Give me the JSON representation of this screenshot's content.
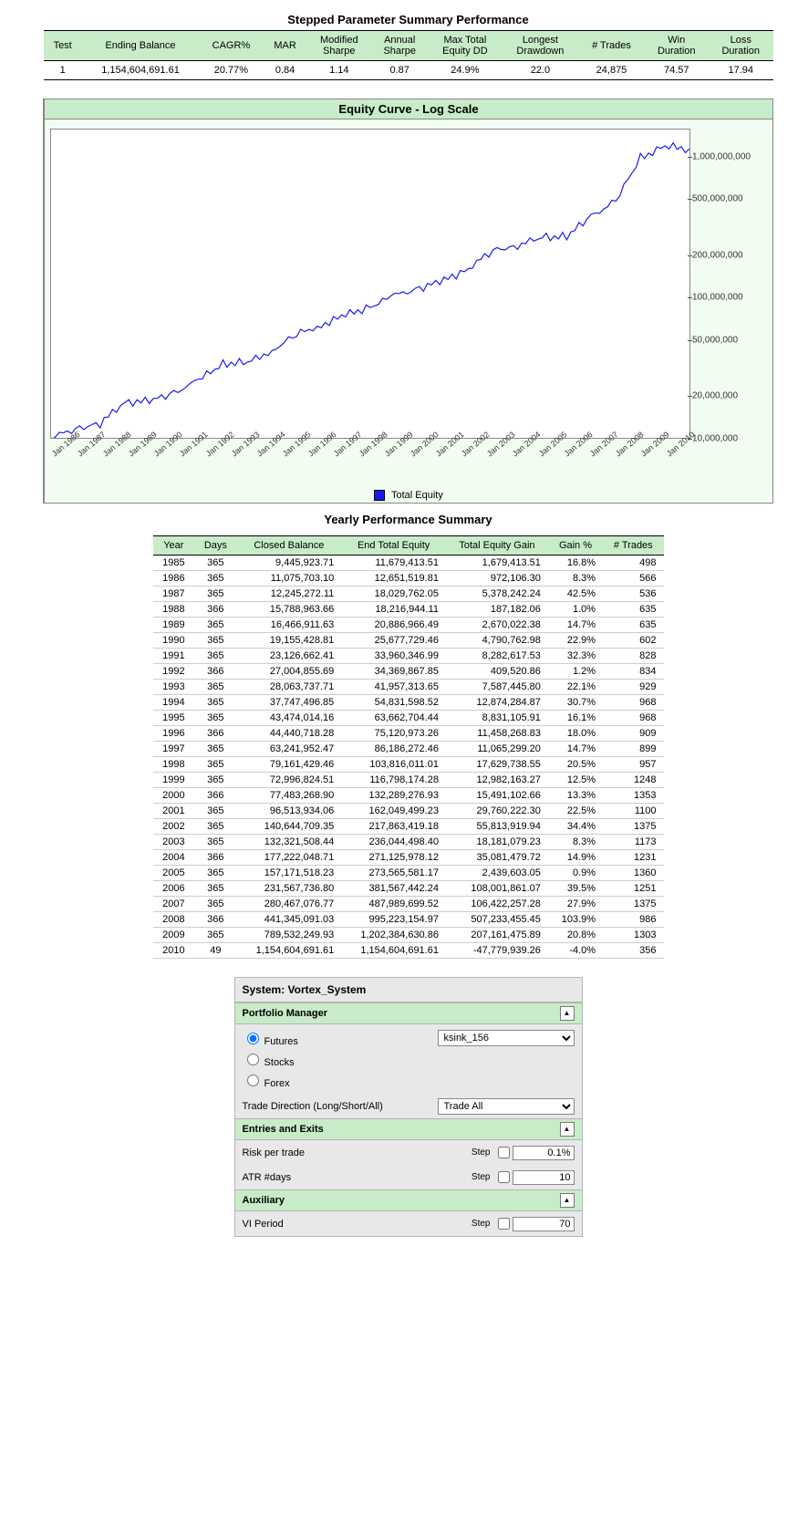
{
  "title_summary": "Stepped Parameter Summary Performance",
  "summary": {
    "columns": [
      "Test",
      "Ending Balance",
      "CAGR%",
      "MAR",
      "Modified Sharpe",
      "Annual Sharpe",
      "Max Total Equity DD",
      "Longest Drawdown",
      "# Trades",
      "Win Duration",
      "Loss Duration"
    ],
    "row": [
      "1",
      "1,154,604,691.61",
      "20.77%",
      "0.84",
      "1.14",
      "0.87",
      "24.9%",
      "22.0",
      "24,875",
      "74.57",
      "17.94"
    ]
  },
  "chart": {
    "title": "Equity Curve - Log Scale",
    "legend": "Total Equity",
    "line_color": "#1a1af0",
    "bg_color": "#f2fdf2",
    "plot_bg": "#ffffff",
    "y": {
      "log_min": 7,
      "log_max": 9.2,
      "ticks": [
        {
          "v": 10000000,
          "label": "10,000,000"
        },
        {
          "v": 20000000,
          "label": "20,000,000"
        },
        {
          "v": 50000000,
          "label": "50,000,000"
        },
        {
          "v": 100000000,
          "label": "100,000,000"
        },
        {
          "v": 200000000,
          "label": "200,000,000"
        },
        {
          "v": 500000000,
          "label": "500,000,000"
        },
        {
          "v": 1000000000,
          "label": "1,000,000,000"
        }
      ]
    },
    "x_labels": [
      "Jan 1986",
      "Jan 1987",
      "Jan 1988",
      "Jan 1989",
      "Jan 1990",
      "Jan 1991",
      "Jan 1992",
      "Jan 1993",
      "Jan 1994",
      "Jan 1995",
      "Jan 1996",
      "Jan 1997",
      "Jan 1998",
      "Jan 1999",
      "Jan 2000",
      "Jan 2001",
      "Jan 2002",
      "Jan 2003",
      "Jan 2004",
      "Jan 2005",
      "Jan 2006",
      "Jan 2007",
      "Jan 2008",
      "Jan 2009",
      "Jan 2010"
    ],
    "series": [
      10000000,
      11679413,
      12651519,
      18029762,
      18216944,
      20886966,
      25677729,
      33960346,
      34369867,
      41957313,
      54831598,
      63662704,
      75120973,
      86186272,
      103816011,
      116798174,
      132289276,
      162049499,
      217863419,
      236044498,
      271125978,
      273565581,
      381567442,
      487989699,
      995223154,
      1202384630,
      1154604691
    ]
  },
  "title_yearly": "Yearly Performance Summary",
  "yearly": {
    "columns": [
      "Year",
      "Days",
      "Closed Balance",
      "End Total Equity",
      "Total Equity Gain",
      "Gain %",
      "# Trades"
    ],
    "rows": [
      [
        "1985",
        "365",
        "9,445,923.71",
        "11,679,413.51",
        "1,679,413.51",
        "16.8%",
        "498"
      ],
      [
        "1986",
        "365",
        "11,075,703.10",
        "12,651,519.81",
        "972,106.30",
        "8.3%",
        "566"
      ],
      [
        "1987",
        "365",
        "12,245,272.11",
        "18,029,762.05",
        "5,378,242.24",
        "42.5%",
        "536"
      ],
      [
        "1988",
        "366",
        "15,788,963.66",
        "18,216,944.11",
        "187,182.06",
        "1.0%",
        "635"
      ],
      [
        "1989",
        "365",
        "16,466,911.63",
        "20,886,966.49",
        "2,670,022.38",
        "14.7%",
        "635"
      ],
      [
        "1990",
        "365",
        "19,155,428.81",
        "25,677,729.46",
        "4,790,762.98",
        "22.9%",
        "602"
      ],
      [
        "1991",
        "365",
        "23,126,662.41",
        "33,960,346.99",
        "8,282,617.53",
        "32.3%",
        "828"
      ],
      [
        "1992",
        "366",
        "27,004,855.69",
        "34,369,867.85",
        "409,520.86",
        "1.2%",
        "834"
      ],
      [
        "1993",
        "365",
        "28,063,737.71",
        "41,957,313.65",
        "7,587,445.80",
        "22.1%",
        "929"
      ],
      [
        "1994",
        "365",
        "37,747,496.85",
        "54,831,598.52",
        "12,874,284.87",
        "30.7%",
        "968"
      ],
      [
        "1995",
        "365",
        "43,474,014.16",
        "63,662,704.44",
        "8,831,105.91",
        "16.1%",
        "968"
      ],
      [
        "1996",
        "366",
        "44,440,718.28",
        "75,120,973.26",
        "11,458,268.83",
        "18.0%",
        "909"
      ],
      [
        "1997",
        "365",
        "63,241,952.47",
        "86,186,272.46",
        "11,065,299.20",
        "14.7%",
        "899"
      ],
      [
        "1998",
        "365",
        "79,161,429.46",
        "103,816,011.01",
        "17,629,738.55",
        "20.5%",
        "957"
      ],
      [
        "1999",
        "365",
        "72,996,824.51",
        "116,798,174.28",
        "12,982,163.27",
        "12.5%",
        "1248"
      ],
      [
        "2000",
        "366",
        "77,483,268.90",
        "132,289,276.93",
        "15,491,102.66",
        "13.3%",
        "1353"
      ],
      [
        "2001",
        "365",
        "96,513,934.06",
        "162,049,499.23",
        "29,760,222.30",
        "22.5%",
        "1100"
      ],
      [
        "2002",
        "365",
        "140,644,709.35",
        "217,863,419.18",
        "55,813,919.94",
        "34.4%",
        "1375"
      ],
      [
        "2003",
        "365",
        "132,321,508.44",
        "236,044,498.40",
        "18,181,079.23",
        "8.3%",
        "1173"
      ],
      [
        "2004",
        "366",
        "177,222,048.71",
        "271,125,978.12",
        "35,081,479.72",
        "14.9%",
        "1231"
      ],
      [
        "2005",
        "365",
        "157,171,518.23",
        "273,565,581.17",
        "2,439,603.05",
        "0.9%",
        "1360"
      ],
      [
        "2006",
        "365",
        "231,567,736.80",
        "381,567,442.24",
        "108,001,861.07",
        "39.5%",
        "1251"
      ],
      [
        "2007",
        "365",
        "280,467,076.77",
        "487,989,699.52",
        "106,422,257.28",
        "27.9%",
        "1375"
      ],
      [
        "2008",
        "366",
        "441,345,091.03",
        "995,223,154.97",
        "507,233,455.45",
        "103.9%",
        "986"
      ],
      [
        "2009",
        "365",
        "789,532,249.93",
        "1,202,384,630.86",
        "207,161,475.89",
        "20.8%",
        "1303"
      ],
      [
        "2010",
        "49",
        "1,154,604,691.61",
        "1,154,604,691.61",
        "-47,779,939.26",
        "-4.0%",
        "356"
      ]
    ]
  },
  "panel": {
    "system": "System: Vortex_System",
    "sec1": "Portfolio Manager",
    "radios": [
      "Futures",
      "Stocks",
      "Forex"
    ],
    "radio_selected": 0,
    "combo1": "ksink_156",
    "trade_dir_label": "Trade Direction (Long/Short/All)",
    "trade_dir_value": "Trade All",
    "sec2": "Entries and Exits",
    "risk_label": "Risk per trade",
    "risk_value": "0.1%",
    "atr_label": "ATR #days",
    "atr_value": "10",
    "sec3": "Auxiliary",
    "vi_label": "VI Period",
    "vi_value": "70",
    "step": "Step"
  }
}
